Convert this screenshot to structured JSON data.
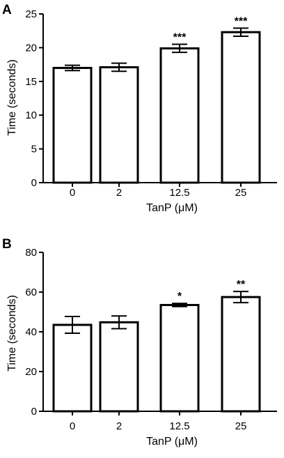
{
  "chart_data": [
    {
      "panel": "A",
      "type": "bar",
      "categories": [
        "0",
        "2",
        "12.5",
        "25"
      ],
      "values": [
        17.0,
        17.1,
        19.9,
        22.3
      ],
      "errors": [
        0.4,
        0.6,
        0.6,
        0.6
      ],
      "significance": [
        "",
        "",
        "***",
        "***"
      ],
      "xlabel": "TanP (μM)",
      "ylabel": "Time (seconds)",
      "ylim": [
        0,
        25
      ],
      "yticks": [
        0,
        5,
        10,
        15,
        20,
        25
      ],
      "grid": false,
      "bar_fill": "#ffffff",
      "bar_stroke": "#000000"
    },
    {
      "panel": "B",
      "type": "bar",
      "categories": [
        "0",
        "2",
        "12.5",
        "25"
      ],
      "values": [
        43.5,
        44.8,
        53.5,
        57.5
      ],
      "errors": [
        4.2,
        3.2,
        0.8,
        2.8
      ],
      "significance": [
        "",
        "",
        "*",
        "**"
      ],
      "xlabel": "TanP (μM)",
      "ylabel": "Time (seconds)",
      "ylim": [
        0,
        80
      ],
      "yticks": [
        0,
        20,
        40,
        60,
        80
      ],
      "grid": false,
      "bar_fill": "#ffffff",
      "bar_stroke": "#000000"
    }
  ]
}
